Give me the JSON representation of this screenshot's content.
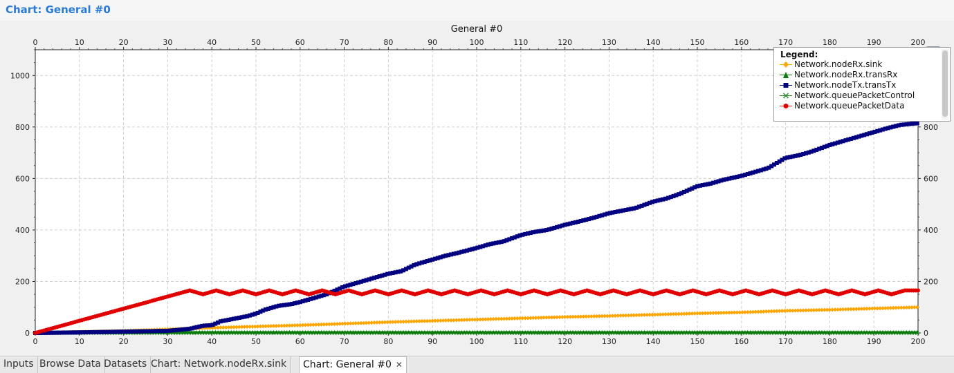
{
  "header": {
    "title": "Chart: General  #0"
  },
  "chart_data": {
    "type": "line",
    "title": "General  #0",
    "xlabel": "",
    "ylabel": "",
    "xlim": [
      0,
      200
    ],
    "ylim": [
      0,
      1100
    ],
    "x_ticks": [
      0,
      10,
      20,
      30,
      40,
      50,
      60,
      70,
      80,
      90,
      100,
      110,
      120,
      130,
      140,
      150,
      160,
      170,
      180,
      190,
      200
    ],
    "y_ticks": [
      0,
      200,
      400,
      600,
      800,
      1000
    ],
    "grid": true,
    "legend_placement": "top-right",
    "series": [
      {
        "name": "Network.nodeRx.sink",
        "color": "#ffa500",
        "marker": "diamond",
        "points": [
          [
            0,
            0
          ],
          [
            10,
            4
          ],
          [
            20,
            8
          ],
          [
            30,
            14
          ],
          [
            40,
            20
          ],
          [
            50,
            25
          ],
          [
            60,
            30
          ],
          [
            70,
            36
          ],
          [
            80,
            42
          ],
          [
            90,
            47
          ],
          [
            100,
            52
          ],
          [
            110,
            57
          ],
          [
            120,
            62
          ],
          [
            130,
            66
          ],
          [
            140,
            71
          ],
          [
            150,
            76
          ],
          [
            160,
            80
          ],
          [
            170,
            86
          ],
          [
            180,
            90
          ],
          [
            190,
            95
          ],
          [
            200,
            100
          ]
        ]
      },
      {
        "name": "Network.nodeRx.transRx",
        "color": "#0a7a0a",
        "marker": "triangle",
        "points": [
          [
            0,
            0
          ],
          [
            20,
            2
          ],
          [
            40,
            3
          ],
          [
            60,
            3
          ],
          [
            80,
            3
          ],
          [
            100,
            3
          ],
          [
            120,
            3
          ],
          [
            140,
            3
          ],
          [
            160,
            3
          ],
          [
            180,
            3
          ],
          [
            200,
            3
          ]
        ]
      },
      {
        "name": "Network.nodeTx.transTx",
        "color": "#000080",
        "marker": "square",
        "points": [
          [
            0,
            0
          ],
          [
            10,
            2
          ],
          [
            20,
            5
          ],
          [
            30,
            8
          ],
          [
            35,
            16
          ],
          [
            38,
            28
          ],
          [
            40,
            30
          ],
          [
            42,
            45
          ],
          [
            45,
            55
          ],
          [
            48,
            65
          ],
          [
            50,
            75
          ],
          [
            52,
            90
          ],
          [
            55,
            105
          ],
          [
            58,
            112
          ],
          [
            60,
            120
          ],
          [
            63,
            135
          ],
          [
            66,
            150
          ],
          [
            70,
            180
          ],
          [
            73,
            195
          ],
          [
            76,
            210
          ],
          [
            80,
            230
          ],
          [
            83,
            240
          ],
          [
            86,
            265
          ],
          [
            90,
            285
          ],
          [
            93,
            300
          ],
          [
            96,
            312
          ],
          [
            100,
            330
          ],
          [
            103,
            345
          ],
          [
            106,
            355
          ],
          [
            110,
            380
          ],
          [
            113,
            392
          ],
          [
            116,
            400
          ],
          [
            120,
            420
          ],
          [
            123,
            432
          ],
          [
            126,
            445
          ],
          [
            130,
            465
          ],
          [
            133,
            475
          ],
          [
            136,
            485
          ],
          [
            140,
            510
          ],
          [
            143,
            522
          ],
          [
            146,
            540
          ],
          [
            150,
            570
          ],
          [
            153,
            580
          ],
          [
            156,
            595
          ],
          [
            160,
            610
          ],
          [
            163,
            625
          ],
          [
            166,
            640
          ],
          [
            170,
            680
          ],
          [
            173,
            690
          ],
          [
            176,
            705
          ],
          [
            180,
            730
          ],
          [
            183,
            745
          ],
          [
            186,
            760
          ],
          [
            190,
            780
          ],
          [
            193,
            795
          ],
          [
            196,
            808
          ],
          [
            200,
            815
          ]
        ]
      },
      {
        "name": "Network.queuePacketControl",
        "color": "#2a8a2a",
        "marker": "cross",
        "points": [
          [
            0,
            0
          ],
          [
            200,
            0
          ]
        ]
      },
      {
        "name": "Network.queuePacketData",
        "color": "#e00000",
        "marker": "circle",
        "points": [
          [
            0,
            0
          ],
          [
            35,
            165
          ],
          [
            38,
            150
          ],
          [
            41,
            165
          ],
          [
            44,
            150
          ],
          [
            47,
            165
          ],
          [
            50,
            150
          ],
          [
            53,
            165
          ],
          [
            56,
            150
          ],
          [
            59,
            165
          ],
          [
            62,
            150
          ],
          [
            65,
            165
          ],
          [
            68,
            150
          ],
          [
            71,
            165
          ],
          [
            74,
            150
          ],
          [
            77,
            165
          ],
          [
            80,
            150
          ],
          [
            83,
            165
          ],
          [
            86,
            150
          ],
          [
            89,
            165
          ],
          [
            92,
            150
          ],
          [
            95,
            165
          ],
          [
            98,
            150
          ],
          [
            101,
            165
          ],
          [
            104,
            150
          ],
          [
            107,
            165
          ],
          [
            110,
            150
          ],
          [
            113,
            165
          ],
          [
            116,
            150
          ],
          [
            119,
            165
          ],
          [
            122,
            150
          ],
          [
            125,
            165
          ],
          [
            128,
            150
          ],
          [
            131,
            165
          ],
          [
            134,
            150
          ],
          [
            137,
            165
          ],
          [
            140,
            150
          ],
          [
            143,
            165
          ],
          [
            146,
            150
          ],
          [
            149,
            165
          ],
          [
            152,
            150
          ],
          [
            155,
            165
          ],
          [
            158,
            150
          ],
          [
            161,
            165
          ],
          [
            164,
            150
          ],
          [
            167,
            165
          ],
          [
            170,
            150
          ],
          [
            173,
            165
          ],
          [
            176,
            150
          ],
          [
            179,
            165
          ],
          [
            182,
            150
          ],
          [
            185,
            165
          ],
          [
            188,
            150
          ],
          [
            191,
            165
          ],
          [
            194,
            150
          ],
          [
            197,
            165
          ],
          [
            200,
            165
          ]
        ]
      }
    ]
  },
  "legend": {
    "title": "Legend:",
    "items": [
      {
        "label": "Network.nodeRx.sink",
        "color": "#ffa500",
        "marker": "diamond"
      },
      {
        "label": "Network.nodeRx.transRx",
        "color": "#0a7a0a",
        "marker": "triangle"
      },
      {
        "label": "Network.nodeTx.transTx",
        "color": "#000080",
        "marker": "square"
      },
      {
        "label": "Network.queuePacketControl",
        "color": "#2a8a2a",
        "marker": "cross"
      },
      {
        "label": "Network.queuePacketData",
        "color": "#e00000",
        "marker": "circle"
      }
    ]
  },
  "legend_button": {
    "icon": "legend-list-icon"
  },
  "tabs": [
    {
      "label": "Inputs",
      "active": false
    },
    {
      "label": "Browse Data",
      "active": false
    },
    {
      "label": "Datasets",
      "active": false
    },
    {
      "label": "Chart: Network.nodeRx.sink",
      "active": false
    },
    {
      "label": "Chart: General  #0",
      "active": true,
      "close_icon": "close-icon"
    }
  ]
}
